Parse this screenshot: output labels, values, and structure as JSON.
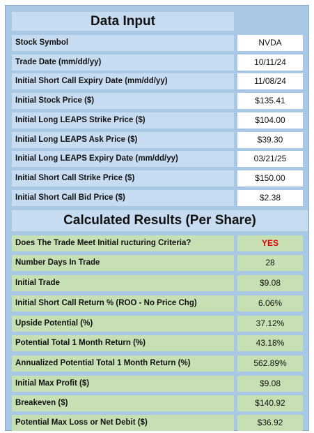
{
  "input_header": "Data Input",
  "inputs": [
    {
      "label": "Stock Symbol",
      "value": "NVDA"
    },
    {
      "label": "Trade Date  (mm/dd/yy)",
      "value": "10/11/24"
    },
    {
      "label": "Initial Short Call Expiry Date  (mm/dd/yy)",
      "value": "11/08/24"
    },
    {
      "label": "Initial Stock Price ($)",
      "value": "$135.41"
    },
    {
      "label": "Initial Long LEAPS Strike Price ($)",
      "value": "$104.00"
    },
    {
      "label": "Initial Long LEAPS Ask Price ($)",
      "value": "$39.30"
    },
    {
      "label": "Initial Long LEAPS Expiry Date (mm/dd/yy)",
      "value": "03/21/25"
    },
    {
      "label": "Initial Short Call Strike Price ($)",
      "value": "$150.00"
    },
    {
      "label": "Initial Short Call Bid Price ($)",
      "value": "$2.38"
    }
  ],
  "results_header": "Calculated Results (Per Share)",
  "results": [
    {
      "label": "Does The Trade Meet Initial ructuring Criteria?",
      "value": "YES"
    },
    {
      "label": "Number Days In Trade",
      "value": "28"
    },
    {
      "label": "Initial Trade",
      "value": "$9.08"
    },
    {
      "label": "Initial Short Call Return % (ROO - No Price Chg)",
      "value": "6.06%"
    },
    {
      "label": "Upside Potential (%)",
      "value": "37.12%"
    },
    {
      "label": "Potential Total 1 Month Return (%)",
      "value": "43.18%"
    },
    {
      "label": "Annualized Potential Total 1 Month Return (%)",
      "value": "562.89%"
    },
    {
      "label": "Initial Max Profit ($)",
      "value": "$9.08"
    },
    {
      "label": "Breakeven ($)",
      "value": "$140.92"
    },
    {
      "label": "Potential Max Loss or Net Debit ($)",
      "value": "$36.92"
    }
  ],
  "colors": {
    "header_bg": "#c7dcf1",
    "frame_bg": "#a9c8e6",
    "result_bg": "#c6e0b4",
    "yes_text": "#e00000"
  }
}
